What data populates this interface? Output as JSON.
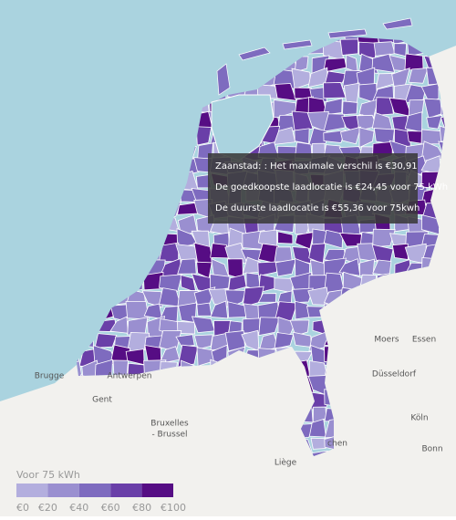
{
  "tooltip": {
    "lines": [
      "Zaanstad: : Het maximale verschil is €30,91",
      "De goedkoopste laadlocatie is €24,45 voor 75 kWh",
      "De duurste laadlocatie is €55,36 voor 75kwh"
    ]
  },
  "legend": {
    "title": "Voor 75 kWh",
    "colors": [
      "#b3aede",
      "#9a8fd0",
      "#7e6bbf",
      "#6a3fa8",
      "#560d84"
    ],
    "labels": [
      "€0",
      "€20",
      "€40",
      "€60",
      "€80",
      "€100"
    ]
  },
  "places": [
    "Brugge",
    "Gent",
    "Antwerpen",
    "Bruxelles",
    "- Brussel",
    "Liège",
    "Moers",
    "Essen",
    "Düsseldorf",
    "Köln",
    "Bonn",
    "chen"
  ]
}
